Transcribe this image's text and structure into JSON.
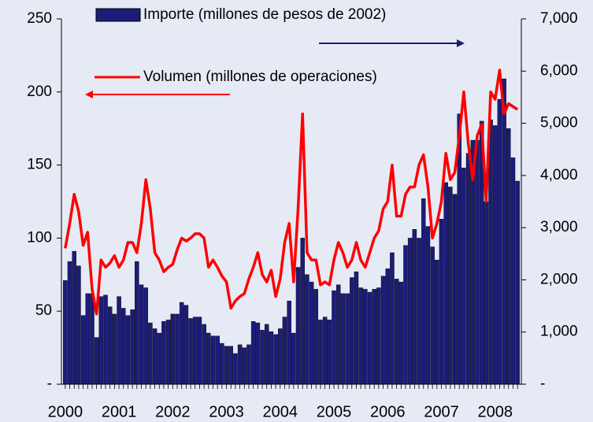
{
  "chart_data": {
    "type": "bar-line",
    "categories": [
      "2000",
      null,
      null,
      null,
      null,
      null,
      null,
      null,
      null,
      null,
      null,
      null,
      "2001",
      null,
      null,
      null,
      null,
      null,
      null,
      null,
      null,
      null,
      null,
      null,
      "2002",
      null,
      null,
      null,
      null,
      null,
      null,
      null,
      null,
      null,
      null,
      null,
      "2003",
      null,
      null,
      null,
      null,
      null,
      null,
      null,
      null,
      null,
      null,
      null,
      "2004",
      null,
      null,
      null,
      null,
      null,
      null,
      null,
      null,
      null,
      null,
      null,
      "2005",
      null,
      null,
      null,
      null,
      null,
      null,
      null,
      null,
      null,
      null,
      null,
      "2006",
      null,
      null,
      null,
      null,
      null,
      null,
      null,
      null,
      null,
      null,
      null,
      "2007",
      null,
      null,
      null,
      null,
      null,
      null,
      null,
      null,
      null,
      null,
      null,
      "2008",
      null,
      null,
      null,
      null,
      null
    ],
    "series": [
      {
        "name": "Importe (millones de pesos de 2002)",
        "type": "bar",
        "axis": "y2",
        "color": "#1c1c78",
        "values": [
          1988,
          2352,
          2548,
          2268,
          1316,
          1736,
          1736,
          896,
          1680,
          1708,
          1484,
          1344,
          1680,
          1456,
          1316,
          1428,
          2352,
          1904,
          1848,
          1176,
          1064,
          980,
          1204,
          1232,
          1344,
          1344,
          1568,
          1512,
          1260,
          1288,
          1288,
          1148,
          980,
          924,
          924,
          784,
          728,
          728,
          588,
          756,
          700,
          756,
          1204,
          1176,
          1036,
          1148,
          1008,
          952,
          1064,
          1288,
          1596,
          980,
          2240,
          2800,
          2100,
          1960,
          1820,
          1232,
          1288,
          1232,
          1792,
          1904,
          1736,
          1736,
          2044,
          2156,
          1848,
          1820,
          1764,
          1820,
          1848,
          2072,
          2212,
          2520,
          2016,
          1960,
          2660,
          2800,
          2968,
          2800,
          3556,
          3024,
          2632,
          2380,
          3164,
          3864,
          3780,
          3640,
          5180,
          4144,
          4424,
          4676,
          4676,
          5040,
          3500,
          5068,
          4956,
          5460,
          5852,
          4900,
          4340,
          3892
        ]
      },
      {
        "name": "Volumen (millones de operaciones)",
        "type": "line",
        "axis": "y",
        "color": "#ff0000",
        "values": [
          93,
          110,
          130,
          118,
          95,
          104,
          65,
          48,
          85,
          80,
          83,
          88,
          80,
          85,
          97,
          97,
          90,
          110,
          140,
          120,
          90,
          85,
          77,
          80,
          82,
          92,
          100,
          98,
          100,
          103,
          103,
          100,
          80,
          85,
          80,
          74,
          70,
          52,
          57,
          60,
          62,
          72,
          80,
          90,
          75,
          70,
          78,
          60,
          72,
          97,
          110,
          70,
          120,
          185,
          90,
          85,
          85,
          68,
          70,
          68,
          85,
          97,
          90,
          80,
          85,
          97,
          85,
          80,
          90,
          100,
          105,
          120,
          125,
          150,
          115,
          115,
          130,
          135,
          135,
          150,
          157,
          135,
          100,
          110,
          125,
          158,
          140,
          145,
          170,
          200,
          165,
          140,
          170,
          178,
          125,
          200,
          195,
          215,
          185,
          192,
          190,
          188
        ]
      }
    ],
    "ylim": [
      0,
      250
    ],
    "yticks": [
      {
        "value": 0,
        "label": "-"
      },
      50,
      100,
      150,
      200,
      250
    ],
    "y2lim": [
      0,
      7000
    ],
    "y2ticks": [
      {
        "value": 0,
        "label": "-"
      },
      {
        "value": 1000,
        "label": "1,000"
      },
      {
        "value": 2000,
        "label": "2,000"
      },
      {
        "value": 3000,
        "label": "3,000"
      },
      {
        "value": 4000,
        "label": "4,000"
      },
      {
        "value": 5000,
        "label": "5,000"
      },
      {
        "value": 6000,
        "label": "6,000"
      },
      {
        "value": 7000,
        "label": "7,000"
      }
    ]
  }
}
